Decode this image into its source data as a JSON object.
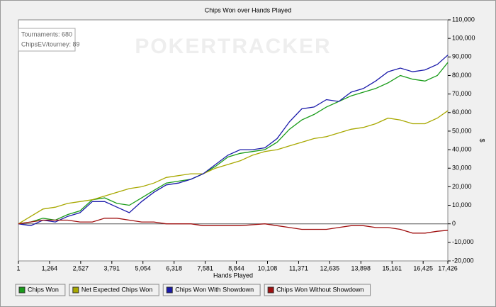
{
  "chart_data": {
    "type": "line",
    "title": "Chips Won over Hands Played",
    "x_label": "Hands Played",
    "y_label": "$",
    "watermark": "POKERTRACKER",
    "info": [
      "Tournaments: 680",
      "ChipsEV/tourney: 89"
    ],
    "x": [
      1,
      500,
      1000,
      1500,
      2000,
      2500,
      3000,
      3500,
      4000,
      4500,
      5000,
      5500,
      6000,
      6500,
      7000,
      7500,
      8000,
      8500,
      9000,
      9500,
      10000,
      10500,
      11000,
      11500,
      12000,
      12500,
      13000,
      13500,
      14000,
      14500,
      15000,
      15500,
      16000,
      16500,
      17000,
      17426
    ],
    "series": [
      {
        "name": "Chips Won",
        "color": "#1a9c1a",
        "values": [
          0,
          1000,
          3000,
          2000,
          5000,
          7000,
          13000,
          14000,
          11000,
          10000,
          14000,
          18000,
          22000,
          23000,
          24000,
          27000,
          31000,
          36000,
          38000,
          39000,
          40000,
          44000,
          51000,
          56000,
          59000,
          63000,
          66000,
          69000,
          71000,
          73000,
          76000,
          80000,
          78000,
          77000,
          80000,
          87000
        ]
      },
      {
        "name": "Net Expected Chips Won",
        "color": "#a8a800",
        "values": [
          0,
          4000,
          8000,
          9000,
          11000,
          12000,
          13000,
          15000,
          17000,
          19000,
          20000,
          22000,
          25000,
          26000,
          27000,
          27000,
          30000,
          32000,
          34000,
          37000,
          39000,
          40000,
          42000,
          44000,
          46000,
          47000,
          49000,
          51000,
          52000,
          54000,
          57000,
          56000,
          54000,
          54000,
          57000,
          61000
        ]
      },
      {
        "name": "Chips Won With Showdown",
        "color": "#1a1aaa",
        "values": [
          0,
          -1000,
          2000,
          1000,
          4000,
          6000,
          12000,
          12000,
          9000,
          6000,
          12000,
          17000,
          21000,
          22000,
          24000,
          27000,
          32000,
          37000,
          40000,
          40000,
          41000,
          46000,
          55000,
          62000,
          63000,
          67000,
          66000,
          71000,
          73000,
          77000,
          82000,
          84000,
          82000,
          83000,
          86000,
          91000
        ]
      },
      {
        "name": "Chips Won Without Showdown",
        "color": "#a01010",
        "values": [
          0,
          1000,
          2000,
          2000,
          2000,
          1000,
          1000,
          3000,
          3000,
          2000,
          1000,
          1000,
          0,
          0,
          0,
          -1000,
          -1000,
          -1000,
          -1000,
          -500,
          0,
          -1000,
          -2000,
          -3000,
          -3000,
          -3000,
          -2000,
          -1000,
          -1000,
          -2000,
          -2000,
          -3000,
          -5000,
          -5000,
          -4000,
          -3500
        ]
      }
    ],
    "xlim": [
      1,
      17426
    ],
    "xticks": [
      1,
      {
        "value": 1264,
        "label": "1,264"
      },
      {
        "value": 2527,
        "label": "2,527"
      },
      {
        "value": 3791,
        "label": "3,791"
      },
      {
        "value": 5054,
        "label": "5,054"
      },
      {
        "value": 6318,
        "label": "6,318"
      },
      {
        "value": 7581,
        "label": "7,581"
      },
      {
        "value": 8844,
        "label": "8,844"
      },
      {
        "value": 10108,
        "label": "10,108"
      },
      {
        "value": 11371,
        "label": "11,371"
      },
      {
        "value": 12635,
        "label": "12,635"
      },
      {
        "value": 13898,
        "label": "13,898"
      },
      {
        "value": 15161,
        "label": "15,161"
      },
      {
        "value": 16425,
        "label": "16,425"
      },
      {
        "value": 17426,
        "label": "17,426"
      }
    ],
    "ylim": [
      -20000,
      110000
    ],
    "yticks": [
      {
        "value": -20000,
        "label": "-20,000"
      },
      {
        "value": -10000,
        "label": "-10,000"
      },
      0,
      {
        "value": 10000,
        "label": "10,000"
      },
      {
        "value": 20000,
        "label": "20,000"
      },
      {
        "value": 30000,
        "label": "30,000"
      },
      {
        "value": 40000,
        "label": "40,000"
      },
      {
        "value": 50000,
        "label": "50,000"
      },
      {
        "value": 60000,
        "label": "60,000"
      },
      {
        "value": 70000,
        "label": "70,000"
      },
      {
        "value": 80000,
        "label": "80,000"
      },
      {
        "value": 90000,
        "label": "90,000"
      },
      {
        "value": 100000,
        "label": "100,000"
      },
      {
        "value": 110000,
        "label": "110,000"
      }
    ],
    "zero_line": true,
    "legend": "bottom"
  }
}
